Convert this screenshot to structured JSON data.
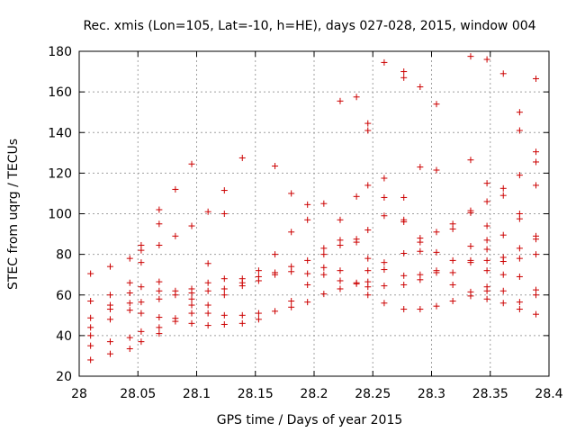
{
  "chart_data": {
    "type": "scatter",
    "title": "Rec. xmis (Lon=105, Lat=-10, h=HE), days 027-028, 2015, window 004",
    "xlabel": "GPS time / Days of year 2015",
    "ylabel": "STEC from uqrg / TECUs",
    "xlim": [
      28,
      28.4
    ],
    "ylim": [
      20,
      180
    ],
    "x_ticks": [
      "28",
      "28.05",
      "28.1",
      "28.15",
      "28.2",
      "28.25",
      "28.3",
      "28.35",
      "28.4"
    ],
    "y_ticks": [
      "20",
      "40",
      "60",
      "80",
      "100",
      "120",
      "140",
      "160",
      "180"
    ],
    "grid": true,
    "marker": "plus",
    "color": "#cc0000",
    "points": [
      [
        28.0097,
        70.5
      ],
      [
        28.0097,
        57.0
      ],
      [
        28.0097,
        48.7
      ],
      [
        28.0097,
        44.0
      ],
      [
        28.0097,
        40.0
      ],
      [
        28.0097,
        35.0
      ],
      [
        28.0097,
        28.0
      ],
      [
        28.0264,
        74.0
      ],
      [
        28.0264,
        60.0
      ],
      [
        28.0264,
        55.0
      ],
      [
        28.0264,
        53.0
      ],
      [
        28.0264,
        48.0
      ],
      [
        28.0264,
        37.0
      ],
      [
        28.0264,
        31.0
      ],
      [
        28.0431,
        78.0
      ],
      [
        28.0431,
        66.0
      ],
      [
        28.0431,
        61.0
      ],
      [
        28.0431,
        56.0
      ],
      [
        28.0431,
        52.5
      ],
      [
        28.0431,
        39.0
      ],
      [
        28.0431,
        33.5
      ],
      [
        28.0528,
        84.5
      ],
      [
        28.0528,
        82.0
      ],
      [
        28.0528,
        76.0
      ],
      [
        28.0528,
        64.0
      ],
      [
        28.0528,
        56.5
      ],
      [
        28.0528,
        51.0
      ],
      [
        28.0528,
        42.0
      ],
      [
        28.0528,
        37.0
      ],
      [
        28.0681,
        102.0
      ],
      [
        28.0681,
        95.0
      ],
      [
        28.0681,
        84.5
      ],
      [
        28.0681,
        66.5
      ],
      [
        28.0681,
        62.0
      ],
      [
        28.0681,
        58.0
      ],
      [
        28.0681,
        49.0
      ],
      [
        28.0681,
        44.0
      ],
      [
        28.0681,
        41.0
      ],
      [
        28.0819,
        112.0
      ],
      [
        28.0819,
        89.0
      ],
      [
        28.0819,
        62.0
      ],
      [
        28.0819,
        60.0
      ],
      [
        28.0819,
        48.5
      ],
      [
        28.0819,
        47.0
      ],
      [
        28.0958,
        124.5
      ],
      [
        28.0958,
        94.0
      ],
      [
        28.0958,
        63.0
      ],
      [
        28.0958,
        61.0
      ],
      [
        28.0958,
        58.0
      ],
      [
        28.0958,
        55.0
      ],
      [
        28.0958,
        51.0
      ],
      [
        28.0958,
        46.0
      ],
      [
        28.1097,
        101.0
      ],
      [
        28.1097,
        75.5
      ],
      [
        28.1097,
        66.0
      ],
      [
        28.1097,
        62.0
      ],
      [
        28.1097,
        55.0
      ],
      [
        28.1097,
        51.0
      ],
      [
        28.1097,
        45.0
      ],
      [
        28.1236,
        111.5
      ],
      [
        28.1236,
        100.0
      ],
      [
        28.1236,
        68.0
      ],
      [
        28.1236,
        63.0
      ],
      [
        28.1236,
        60.0
      ],
      [
        28.1236,
        50.0
      ],
      [
        28.1236,
        45.5
      ],
      [
        28.1389,
        127.5
      ],
      [
        28.1389,
        68.0
      ],
      [
        28.1389,
        66.0
      ],
      [
        28.1389,
        64.5
      ],
      [
        28.1389,
        50.0
      ],
      [
        28.1389,
        46.0
      ],
      [
        28.1528,
        72.0
      ],
      [
        28.1528,
        69.0
      ],
      [
        28.1528,
        67.0
      ],
      [
        28.1528,
        51.0
      ],
      [
        28.1528,
        48.0
      ],
      [
        28.1667,
        123.5
      ],
      [
        28.1667,
        80.0
      ],
      [
        28.1667,
        71.0
      ],
      [
        28.1667,
        70.0
      ],
      [
        28.1667,
        52.0
      ],
      [
        28.1806,
        110.0
      ],
      [
        28.1806,
        91.0
      ],
      [
        28.1806,
        74.0
      ],
      [
        28.1806,
        71.5
      ],
      [
        28.1806,
        57.0
      ],
      [
        28.1806,
        54.0
      ],
      [
        28.1944,
        104.5
      ],
      [
        28.1944,
        97.0
      ],
      [
        28.1944,
        77.0
      ],
      [
        28.1944,
        70.5
      ],
      [
        28.1944,
        65.0
      ],
      [
        28.1944,
        56.5
      ],
      [
        28.2083,
        105.0
      ],
      [
        28.2083,
        83.0
      ],
      [
        28.2083,
        80.0
      ],
      [
        28.2083,
        73.5
      ],
      [
        28.2083,
        70.0
      ],
      [
        28.2083,
        60.5
      ],
      [
        28.2222,
        155.5
      ],
      [
        28.2222,
        97.0
      ],
      [
        28.2222,
        87.0
      ],
      [
        28.2222,
        84.5
      ],
      [
        28.2222,
        72.0
      ],
      [
        28.2222,
        67.0
      ],
      [
        28.2222,
        63.0
      ],
      [
        28.2361,
        157.5
      ],
      [
        28.2361,
        108.5
      ],
      [
        28.2361,
        87.5
      ],
      [
        28.2361,
        86.0
      ],
      [
        28.2361,
        66.0
      ],
      [
        28.2361,
        65.5
      ],
      [
        28.2458,
        144.5
      ],
      [
        28.2458,
        141.0
      ],
      [
        28.2458,
        114.0
      ],
      [
        28.2458,
        92.0
      ],
      [
        28.2458,
        78.0
      ],
      [
        28.2458,
        72.0
      ],
      [
        28.2458,
        66.5
      ],
      [
        28.2458,
        64.0
      ],
      [
        28.2458,
        60.0
      ],
      [
        28.2597,
        174.5
      ],
      [
        28.2597,
        117.5
      ],
      [
        28.2597,
        108.0
      ],
      [
        28.2597,
        99.0
      ],
      [
        28.2597,
        76.0
      ],
      [
        28.2597,
        72.5
      ],
      [
        28.2597,
        64.5
      ],
      [
        28.2597,
        56.0
      ],
      [
        28.2764,
        170.0
      ],
      [
        28.2764,
        167.0
      ],
      [
        28.2764,
        108.0
      ],
      [
        28.2764,
        97.0
      ],
      [
        28.2764,
        96.0
      ],
      [
        28.2764,
        80.5
      ],
      [
        28.2764,
        69.5
      ],
      [
        28.2764,
        65.0
      ],
      [
        28.2764,
        53.0
      ],
      [
        28.2903,
        162.5
      ],
      [
        28.2903,
        123.0
      ],
      [
        28.2903,
        88.0
      ],
      [
        28.2903,
        86.0
      ],
      [
        28.2903,
        81.5
      ],
      [
        28.2903,
        70.0
      ],
      [
        28.2903,
        67.5
      ],
      [
        28.2903,
        53.0
      ],
      [
        28.3042,
        154.0
      ],
      [
        28.3042,
        121.5
      ],
      [
        28.3042,
        91.0
      ],
      [
        28.3042,
        81.0
      ],
      [
        28.3042,
        72.0
      ],
      [
        28.3042,
        71.0
      ],
      [
        28.3042,
        54.5
      ],
      [
        28.3181,
        95.0
      ],
      [
        28.3181,
        92.5
      ],
      [
        28.3181,
        77.0
      ],
      [
        28.3181,
        71.0
      ],
      [
        28.3181,
        65.0
      ],
      [
        28.3181,
        57.0
      ],
      [
        28.3333,
        177.5
      ],
      [
        28.3333,
        126.5
      ],
      [
        28.3333,
        101.5
      ],
      [
        28.3333,
        100.5
      ],
      [
        28.3333,
        84.0
      ],
      [
        28.3333,
        77.0
      ],
      [
        28.3333,
        76.0
      ],
      [
        28.3333,
        61.5
      ],
      [
        28.3333,
        59.5
      ],
      [
        28.3472,
        176.0
      ],
      [
        28.3472,
        115.0
      ],
      [
        28.3472,
        106.0
      ],
      [
        28.3472,
        94.0
      ],
      [
        28.3472,
        87.0
      ],
      [
        28.3472,
        82.5
      ],
      [
        28.3472,
        77.0
      ],
      [
        28.3472,
        72.0
      ],
      [
        28.3472,
        64.0
      ],
      [
        28.3472,
        62.0
      ],
      [
        28.3472,
        58.0
      ],
      [
        28.3611,
        169.0
      ],
      [
        28.3611,
        112.5
      ],
      [
        28.3611,
        109.0
      ],
      [
        28.3611,
        89.5
      ],
      [
        28.3611,
        78.5
      ],
      [
        28.3611,
        76.5
      ],
      [
        28.3611,
        70.0
      ],
      [
        28.3611,
        62.0
      ],
      [
        28.3611,
        56.0
      ],
      [
        28.375,
        150.0
      ],
      [
        28.375,
        141.0
      ],
      [
        28.375,
        119.0
      ],
      [
        28.375,
        100.0
      ],
      [
        28.375,
        97.5
      ],
      [
        28.375,
        83.0
      ],
      [
        28.375,
        78.0
      ],
      [
        28.375,
        69.0
      ],
      [
        28.375,
        56.5
      ],
      [
        28.375,
        53.0
      ],
      [
        28.3889,
        166.5
      ],
      [
        28.3889,
        130.5
      ],
      [
        28.3889,
        125.5
      ],
      [
        28.3889,
        114.0
      ],
      [
        28.3889,
        89.0
      ],
      [
        28.3889,
        87.5
      ],
      [
        28.3889,
        80.0
      ],
      [
        28.3889,
        62.5
      ],
      [
        28.3889,
        60.0
      ],
      [
        28.3889,
        50.5
      ]
    ]
  }
}
